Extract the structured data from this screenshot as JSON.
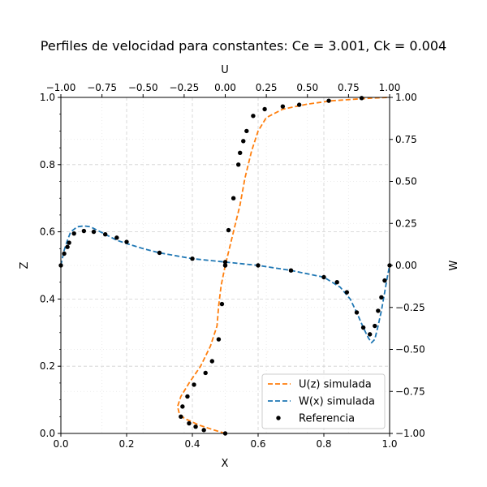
{
  "chart_data": {
    "type": "line",
    "title": "Perfiles de velocidad para constantes: Ce = 3.001, Ck = 0.004",
    "axes": {
      "bottom": {
        "label": "X",
        "range": [
          0,
          1
        ],
        "ticks": [
          0,
          0.2,
          0.4,
          0.6,
          0.8,
          1.0
        ],
        "tick_labels": [
          "0.0",
          "0.2",
          "0.4",
          "0.6",
          "0.8",
          "1.0"
        ]
      },
      "left": {
        "label": "Z",
        "range": [
          0,
          1
        ],
        "ticks": [
          0,
          0.2,
          0.4,
          0.6,
          0.8,
          1.0
        ],
        "tick_labels": [
          "0.0",
          "0.2",
          "0.4",
          "0.6",
          "0.8",
          "1.0"
        ]
      },
      "top": {
        "label": "U",
        "range": [
          -1,
          1
        ],
        "ticks": [
          -1,
          -0.75,
          -0.5,
          -0.25,
          0,
          0.25,
          0.5,
          0.75,
          1
        ],
        "tick_labels": [
          "−1.00",
          "−0.75",
          "−0.50",
          "−0.25",
          "0.00",
          "0.25",
          "0.50",
          "0.75",
          "1.00"
        ]
      },
      "right": {
        "label": "W",
        "range": [
          -1,
          1
        ],
        "ticks": [
          -1,
          -0.75,
          -0.5,
          -0.25,
          0,
          0.25,
          0.5,
          0.75,
          1
        ],
        "tick_labels": [
          "−1.00",
          "−0.75",
          "−0.50",
          "−0.25",
          "0.00",
          "0.25",
          "0.50",
          "0.75",
          "1.00"
        ]
      }
    },
    "grid": true,
    "legend_position": "lower-right",
    "series": [
      {
        "name": "U(z) simulada",
        "style": "dashed",
        "color": "#ff7f0e",
        "x_axis": "U",
        "y_axis": "Z",
        "x": [
          0.0,
          -0.08,
          -0.16,
          -0.25,
          -0.28,
          -0.29,
          -0.27,
          -0.22,
          -0.15,
          -0.09,
          -0.05,
          -0.04,
          -0.025,
          0.0,
          0.03,
          0.06,
          0.09,
          0.12,
          0.16,
          0.2,
          0.25,
          0.35,
          0.5,
          0.65,
          0.8,
          0.9,
          1.0
        ],
        "y": [
          0.0,
          0.012,
          0.025,
          0.045,
          0.06,
          0.08,
          0.11,
          0.15,
          0.2,
          0.26,
          0.32,
          0.38,
          0.44,
          0.5,
          0.56,
          0.62,
          0.68,
          0.76,
          0.84,
          0.9,
          0.94,
          0.965,
          0.98,
          0.99,
          0.995,
          0.998,
          1.0
        ]
      },
      {
        "name": "W(x) simulada",
        "style": "dashed",
        "color": "#1f77b4",
        "x_axis": "X",
        "y_axis": "W",
        "x": [
          0.0,
          0.01,
          0.02,
          0.03,
          0.05,
          0.07,
          0.09,
          0.11,
          0.14,
          0.17,
          0.2,
          0.25,
          0.3,
          0.4,
          0.5,
          0.6,
          0.7,
          0.8,
          0.85,
          0.88,
          0.9,
          0.92,
          0.935,
          0.945,
          0.955,
          0.965,
          0.975,
          0.985,
          0.993,
          1.0
        ],
        "y": [
          0.0,
          0.09,
          0.15,
          0.2,
          0.23,
          0.235,
          0.23,
          0.21,
          0.18,
          0.15,
          0.13,
          0.1,
          0.075,
          0.04,
          0.02,
          0.0,
          -0.03,
          -0.07,
          -0.13,
          -0.2,
          -0.28,
          -0.37,
          -0.43,
          -0.46,
          -0.44,
          -0.36,
          -0.27,
          -0.16,
          -0.07,
          0.0
        ]
      },
      {
        "name": "Referencia",
        "style": "markers",
        "color": "#000000",
        "points": [
          {
            "U": 0.0,
            "Z": 0.0
          },
          {
            "U": -0.13,
            "Z": 0.01
          },
          {
            "U": -0.18,
            "Z": 0.02
          },
          {
            "U": -0.22,
            "Z": 0.03
          },
          {
            "U": -0.27,
            "Z": 0.05
          },
          {
            "U": -0.26,
            "Z": 0.08
          },
          {
            "U": -0.23,
            "Z": 0.11
          },
          {
            "U": -0.19,
            "Z": 0.145
          },
          {
            "U": -0.12,
            "Z": 0.18
          },
          {
            "U": -0.08,
            "Z": 0.215
          },
          {
            "U": -0.04,
            "Z": 0.28
          },
          {
            "U": -0.02,
            "Z": 0.385
          },
          {
            "U": 0.0,
            "Z": 0.5
          },
          {
            "U": 0.02,
            "Z": 0.605
          },
          {
            "U": 0.05,
            "Z": 0.7
          },
          {
            "U": 0.08,
            "Z": 0.8
          },
          {
            "U": 0.09,
            "Z": 0.835
          },
          {
            "U": 0.11,
            "Z": 0.87
          },
          {
            "U": 0.13,
            "Z": 0.9
          },
          {
            "U": 0.17,
            "Z": 0.945
          },
          {
            "U": 0.24,
            "Z": 0.965
          },
          {
            "U": 0.35,
            "Z": 0.973
          },
          {
            "U": 0.45,
            "Z": 0.978
          },
          {
            "U": 0.63,
            "Z": 0.99
          },
          {
            "U": 0.83,
            "Z": 0.998
          },
          {
            "X": 0.0,
            "W": 0.0
          },
          {
            "X": 0.01,
            "W": 0.07
          },
          {
            "X": 0.02,
            "W": 0.11
          },
          {
            "X": 0.025,
            "W": 0.135
          },
          {
            "X": 0.04,
            "W": 0.19
          },
          {
            "X": 0.07,
            "W": 0.205
          },
          {
            "X": 0.1,
            "W": 0.2
          },
          {
            "X": 0.135,
            "W": 0.185
          },
          {
            "X": 0.17,
            "W": 0.165
          },
          {
            "X": 0.2,
            "W": 0.14
          },
          {
            "X": 0.3,
            "W": 0.075
          },
          {
            "X": 0.4,
            "W": 0.04
          },
          {
            "X": 0.5,
            "W": 0.02
          },
          {
            "X": 0.5,
            "W": 0.0
          },
          {
            "X": 0.6,
            "W": 0.0
          },
          {
            "X": 0.7,
            "W": -0.03
          },
          {
            "X": 0.8,
            "W": -0.07
          },
          {
            "X": 0.84,
            "W": -0.1
          },
          {
            "X": 0.87,
            "W": -0.16
          },
          {
            "X": 0.9,
            "W": -0.28
          },
          {
            "X": 0.92,
            "W": -0.37
          },
          {
            "X": 0.94,
            "W": -0.41
          },
          {
            "X": 0.955,
            "W": -0.36
          },
          {
            "X": 0.965,
            "W": -0.27
          },
          {
            "X": 0.975,
            "W": -0.19
          },
          {
            "X": 0.985,
            "W": -0.09
          },
          {
            "X": 1.0,
            "W": 0.0
          }
        ]
      }
    ]
  }
}
